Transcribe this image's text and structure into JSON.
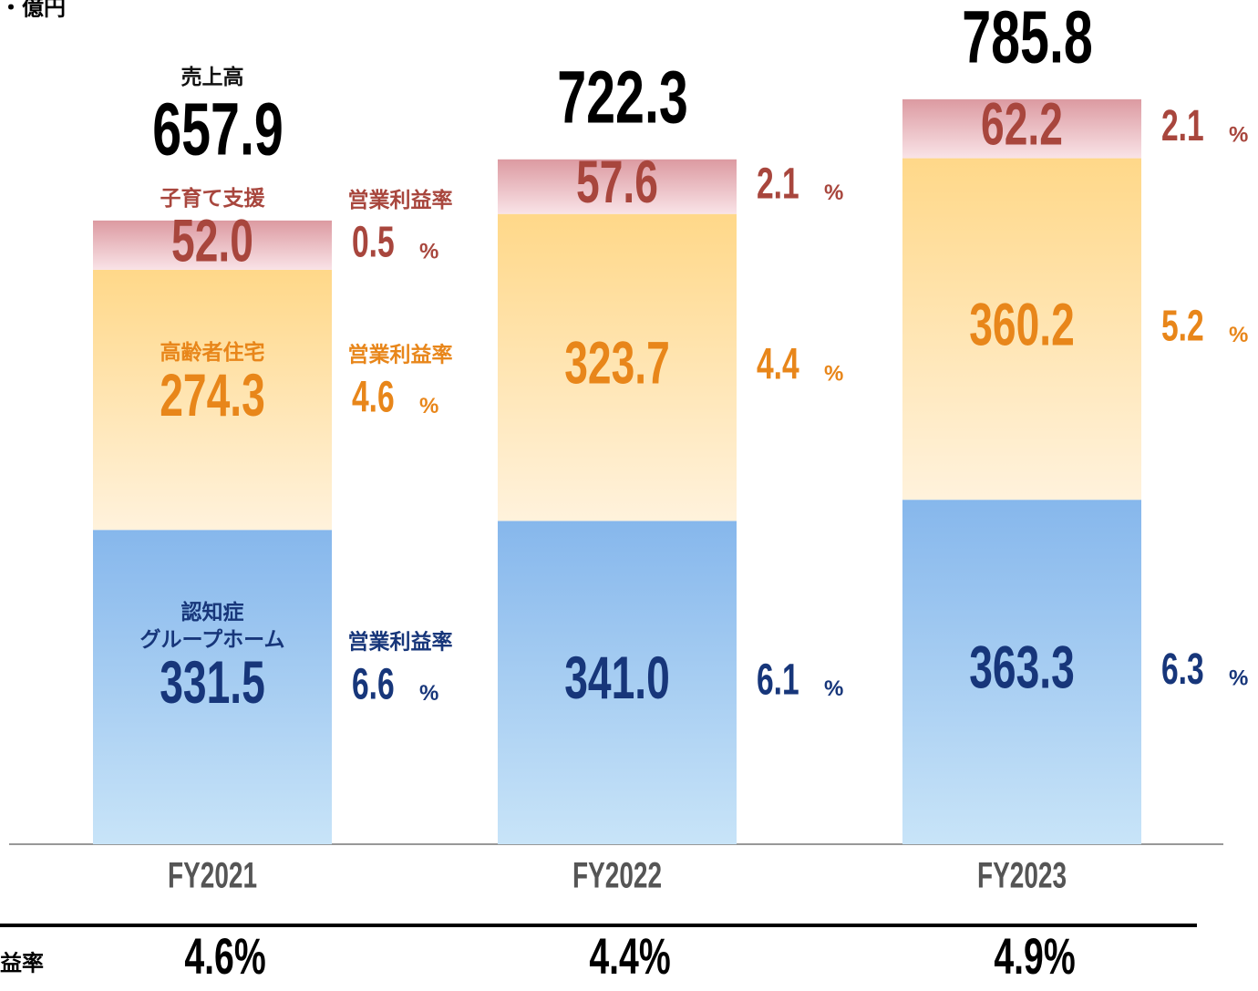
{
  "chart_data": {
    "type": "stacked_bar",
    "unit_label": "・億円",
    "total_label": "売上高",
    "categories": [
      "FY2021",
      "FY2022",
      "FY2023"
    ],
    "totals": [
      657.9,
      722.3,
      785.8
    ],
    "margin_label": "営業利益率",
    "margin_unit": "%",
    "series": [
      {
        "name": "認知症\nグループホーム",
        "color": "#17367a",
        "fill": [
          "#86b7ec",
          "#c8e4f8"
        ],
        "values": [
          331.5,
          341.0,
          363.3
        ],
        "value_labels": [
          "331.5",
          "341.0",
          "363.3"
        ],
        "margins": [
          6.6,
          6.1,
          6.3
        ]
      },
      {
        "name": "高齢者住宅",
        "color": "#e8861a",
        "fill": [
          "#ffd889",
          "#fff2dc"
        ],
        "values": [
          274.3,
          323.7,
          360.2
        ],
        "value_labels": [
          "274.3",
          "323.7",
          "360.2"
        ],
        "margins": [
          4.6,
          4.4,
          5.2
        ]
      },
      {
        "name": "子育て支援",
        "color": "#a8463d",
        "fill": [
          "#dc9aa1",
          "#f9e3e7"
        ],
        "values": [
          52.0,
          57.6,
          62.2
        ],
        "value_labels": [
          "52.0",
          "57.6",
          "62.2"
        ],
        "margins": [
          0.5,
          2.1,
          2.1
        ]
      }
    ],
    "operating_margin": {
      "label": "益率",
      "values": [
        4.6,
        4.4,
        4.9
      ],
      "value_labels": [
        "4.6%",
        "4.4%",
        "4.9%"
      ]
    }
  }
}
